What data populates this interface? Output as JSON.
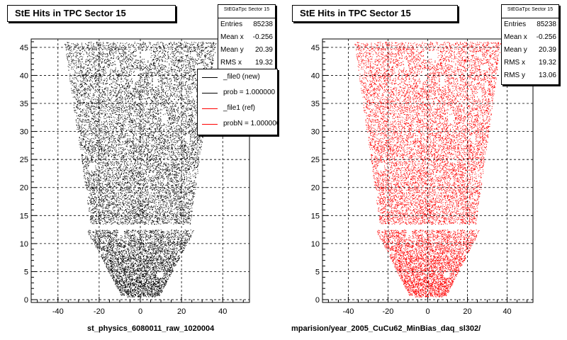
{
  "colors": {
    "file0": "#000000",
    "file1": "#ff0000",
    "frame": "#000000",
    "grid": "#000000"
  },
  "panels": [
    {
      "title": "StE Hits in TPC Sector 15",
      "stats": {
        "name": "StEGaTpc Sector 15",
        "rows": [
          {
            "label": "Entries",
            "value": "85238"
          },
          {
            "label": "Mean x",
            "value": "-0.256"
          },
          {
            "label": "Mean y",
            "value": "20.39"
          },
          {
            "label": "RMS x",
            "value": "19.32"
          }
        ]
      },
      "legend": [
        {
          "label": "_file0 (new)",
          "color": "#000000"
        },
        {
          "label": "prob = 1.000000",
          "color": "#000000"
        },
        {
          "label": "_file1 (ref)",
          "color": "#ff0000"
        },
        {
          "label": "probN = 1.000000",
          "color": "#ff0000"
        }
      ],
      "footer": "st_physics_6080011_raw_1020004"
    },
    {
      "title": "StE Hits in TPC Sector 15",
      "stats": {
        "name": "StEGaTpc Sector 15",
        "rows": [
          {
            "label": "Entries",
            "value": "85238"
          },
          {
            "label": "Mean x",
            "value": "-0.256"
          },
          {
            "label": "Mean y",
            "value": "20.39"
          },
          {
            "label": "RMS x",
            "value": "19.32"
          },
          {
            "label": "RMS y",
            "value": "13.06"
          }
        ]
      },
      "footer": "mparision/year_2005_CuCu62_MinBias_daq_sl302/"
    }
  ],
  "chart_data": [
    {
      "type": "scatter",
      "title": "StE Hits in TPC Sector 15",
      "series": [
        {
          "name": "_file0 (new)",
          "color": "#000000"
        }
      ],
      "xlim": [
        -53,
        53
      ],
      "ylim": [
        -0.5,
        46.5
      ],
      "xticks": [
        -40,
        -20,
        0,
        20,
        40
      ],
      "yticks": [
        0,
        5,
        10,
        15,
        20,
        25,
        30,
        35,
        40,
        45
      ],
      "grid": true,
      "legend_placement": "top-right",
      "entries": 85238,
      "mean_x": -0.256,
      "mean_y": 20.39,
      "rms_x": 19.32,
      "xlabel": "",
      "ylabel": ""
    },
    {
      "type": "scatter",
      "title": "StE Hits in TPC Sector 15",
      "series": [
        {
          "name": "_file1 (ref)",
          "color": "#ff0000"
        }
      ],
      "xlim": [
        -53,
        53
      ],
      "ylim": [
        -0.5,
        46.5
      ],
      "xticks": [
        -40,
        -20,
        0,
        20,
        40
      ],
      "yticks": [
        0,
        5,
        10,
        15,
        20,
        25,
        30,
        35,
        40,
        45
      ],
      "grid": true,
      "entries": 85238,
      "mean_x": -0.256,
      "mean_y": 20.39,
      "rms_x": 19.32,
      "rms_y": 13.06,
      "xlabel": "",
      "ylabel": ""
    }
  ]
}
